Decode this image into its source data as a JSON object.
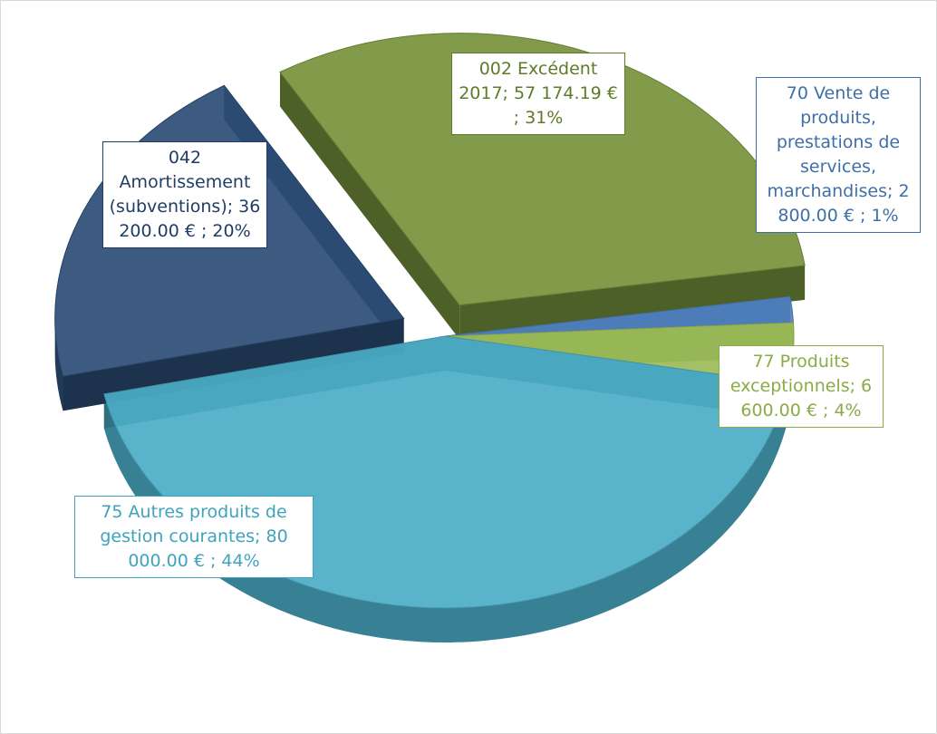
{
  "chart_data": {
    "type": "pie",
    "categories": [
      "002 Excédent 2017",
      "70 Vente de produits, prestations de services, marchandises",
      "77 Produits exceptionnels",
      "75 Autres produits de gestion courantes",
      "042 Amortissement (subventions)"
    ],
    "values": [
      57174.19,
      2800,
      6600,
      80000,
      36200
    ],
    "value_labels": [
      "002 Excédent 2017; 57 174.19 € ; 31%",
      "70 Vente de produits, prestations de services, marchandises; 2 800.00 € ; 1%",
      "77 Produits exceptionnels; 6 600.00 € ; 4%",
      "75 Autres produits de gestion courantes; 80 000.00 € ; 44%",
      "042 Amortissement (subventions); 36 200.00 € ; 20%"
    ],
    "colors": [
      "#77933c",
      "#4f81bd",
      "#9bbb59",
      "#4bacc6",
      "#2c4d75"
    ]
  }
}
